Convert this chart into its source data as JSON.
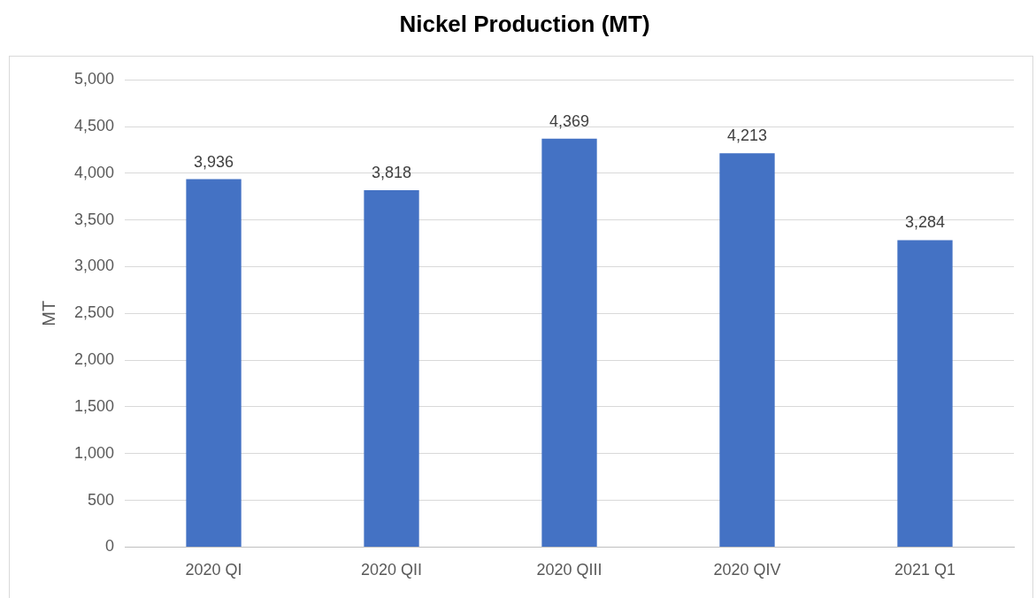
{
  "chart_data": {
    "type": "bar",
    "title": "Nickel Production (MT)",
    "ylabel": "MT",
    "categories": [
      "2020 QI",
      "2020 QII",
      "2020 QIII",
      "2020 QIV",
      "2021 Q1"
    ],
    "values": [
      3936,
      3818,
      4369,
      4213,
      3284
    ],
    "color": "#4472c4",
    "ylim": [
      0,
      5000
    ],
    "yticks": [
      0,
      {
        "value": 500,
        "label": "500"
      },
      {
        "value": 1000,
        "label": "1,000"
      },
      {
        "value": 1500,
        "label": "1,500"
      },
      {
        "value": 2000,
        "label": "2,000"
      },
      {
        "value": 2500,
        "label": "2,500"
      },
      {
        "value": 3000,
        "label": "3,000"
      },
      {
        "value": 3500,
        "label": "3,500"
      },
      {
        "value": 4000,
        "label": "4,000"
      },
      {
        "value": 4500,
        "label": "4,500"
      },
      {
        "value": 5000,
        "label": "5,000"
      }
    ],
    "value_labels": [
      "3,936",
      "3,818",
      "4,369",
      "4,213",
      "3,284"
    ],
    "grid": "y",
    "legend": false
  }
}
